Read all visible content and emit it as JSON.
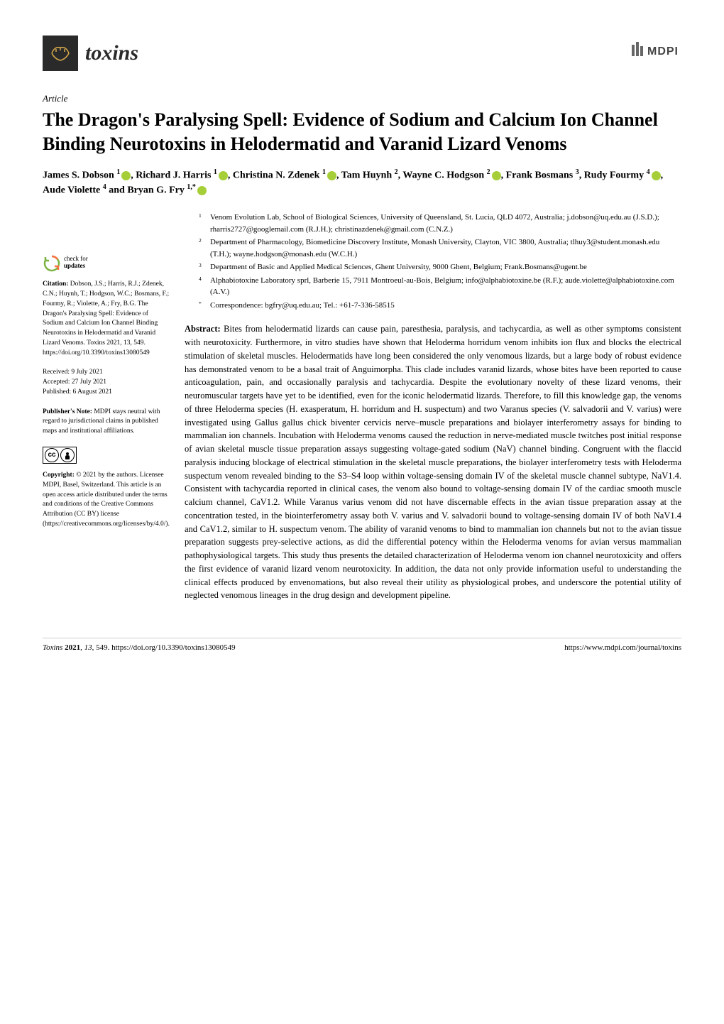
{
  "journal": {
    "name": "toxins",
    "publisher": "MDPI"
  },
  "article_type": "Article",
  "title": "The Dragon's Paralysing Spell: Evidence of Sodium and Calcium Ion Channel Binding Neurotoxins in Helodermatid and Varanid Lizard Venoms",
  "authors_html": "James S. Dobson <sup>1</sup><orcid/>, Richard J. Harris <sup>1</sup><orcid/>, Christina N. Zdenek <sup>1</sup><orcid/>, Tam Huynh <sup>2</sup>, Wayne C. Hodgson <sup>2</sup><orcid/>, Frank Bosmans <sup>3</sup>, Rudy Fourmy <sup>4</sup><orcid/>, Aude Violette <sup>4</sup> and Bryan G. Fry <sup>1,*</sup><orcid/>",
  "affiliations": [
    {
      "num": "1",
      "text": "Venom Evolution Lab, School of Biological Sciences, University of Queensland, St. Lucia, QLD 4072, Australia; j.dobson@uq.edu.au (J.S.D.); rharris2727@googlemail.com (R.J.H.); christinazdenek@gmail.com (C.N.Z.)"
    },
    {
      "num": "2",
      "text": "Department of Pharmacology, Biomedicine Discovery Institute, Monash University, Clayton, VIC 3800, Australia; tlhuy3@student.monash.edu (T.H.); wayne.hodgson@monash.edu (W.C.H.)"
    },
    {
      "num": "3",
      "text": "Department of Basic and Applied Medical Sciences, Ghent University, 9000 Ghent, Belgium; Frank.Bosmans@ugent.be"
    },
    {
      "num": "4",
      "text": "Alphabiotoxine Laboratory sprl, Barberie 15, 7911 Montroeul-au-Bois, Belgium; info@alphabiotoxine.be (R.F.); aude.violette@alphabiotoxine.com (A.V.)"
    },
    {
      "num": "*",
      "text": "Correspondence: bgfry@uq.edu.au; Tel.: +61-7-336-58515"
    }
  ],
  "abstract_label": "Abstract:",
  "abstract": "Bites from helodermatid lizards can cause pain, paresthesia, paralysis, and tachycardia, as well as other symptoms consistent with neurotoxicity. Furthermore, in vitro studies have shown that Heloderma horridum venom inhibits ion flux and blocks the electrical stimulation of skeletal muscles. Helodermatids have long been considered the only venomous lizards, but a large body of robust evidence has demonstrated venom to be a basal trait of Anguimorpha. This clade includes varanid lizards, whose bites have been reported to cause anticoagulation, pain, and occasionally paralysis and tachycardia. Despite the evolutionary novelty of these lizard venoms, their neuromuscular targets have yet to be identified, even for the iconic helodermatid lizards. Therefore, to fill this knowledge gap, the venoms of three Heloderma species (H. exasperatum, H. horridum and H. suspectum) and two Varanus species (V. salvadorii and V. varius) were investigated using Gallus gallus chick biventer cervicis nerve–muscle preparations and biolayer interferometry assays for binding to mammalian ion channels. Incubation with Heloderma venoms caused the reduction in nerve-mediated muscle twitches post initial response of avian skeletal muscle tissue preparation assays suggesting voltage-gated sodium (NaV) channel binding. Congruent with the flaccid paralysis inducing blockage of electrical stimulation in the skeletal muscle preparations, the biolayer interferometry tests with Heloderma suspectum venom revealed binding to the S3–S4 loop within voltage-sensing domain IV of the skeletal muscle channel subtype, NaV1.4. Consistent with tachycardia reported in clinical cases, the venom also bound to voltage-sensing domain IV of the cardiac smooth muscle calcium channel, CaV1.2. While Varanus varius venom did not have discernable effects in the avian tissue preparation assay at the concentration tested, in the biointerferometry assay both V. varius and V. salvadorii bound to voltage-sensing domain IV of both NaV1.4 and CaV1.2, similar to H. suspectum venom. The ability of varanid venoms to bind to mammalian ion channels but not to the avian tissue preparation suggests prey-selective actions, as did the differential potency within the Heloderma venoms for avian versus mammalian pathophysiological targets. This study thus presents the detailed characterization of Heloderma venom ion channel neurotoxicity and offers the first evidence of varanid lizard venom neurotoxicity. In addition, the data not only provide information useful to understanding the clinical effects produced by envenomations, but also reveal their utility as physiological probes, and underscore the potential utility of neglected venomous lineages in the drug design and development pipeline.",
  "sidebar": {
    "check_updates": "check for updates",
    "citation_label": "Citation:",
    "citation": "Dobson, J.S.; Harris, R.J.; Zdenek, C.N.; Huynh, T.; Hodgson, W.C.; Bosmans, F.; Fourmy, R.; Violette, A.; Fry, B.G. The Dragon's Paralysing Spell: Evidence of Sodium and Calcium Ion Channel Binding Neurotoxins in Helodermatid and Varanid Lizard Venoms. Toxins 2021, 13, 549. https://doi.org/10.3390/toxins13080549",
    "received": "Received: 9 July 2021",
    "accepted": "Accepted: 27 July 2021",
    "published": "Published: 6 August 2021",
    "publishers_note_label": "Publisher's Note:",
    "publishers_note": "MDPI stays neutral with regard to jurisdictional claims in published maps and institutional affiliations.",
    "copyright_label": "Copyright:",
    "copyright": "© 2021 by the authors. Licensee MDPI, Basel, Switzerland. This article is an open access article distributed under the terms and conditions of the Creative Commons Attribution (CC BY) license (https://creativecommons.org/licenses/by/4.0/)."
  },
  "footer": {
    "left": "Toxins 2021, 13, 549. https://doi.org/10.3390/toxins13080549",
    "right": "https://www.mdpi.com/journal/toxins"
  }
}
